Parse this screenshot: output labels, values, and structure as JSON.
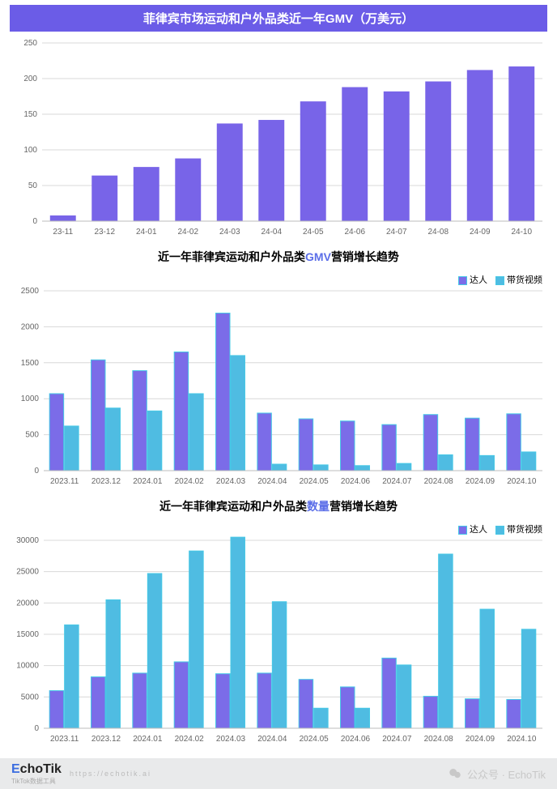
{
  "chart1": {
    "type": "bar",
    "title": "菲律宾市场运动和户外品类近一年GMV（万美元）",
    "x_labels": [
      "23-11",
      "23-12",
      "24-01",
      "24-02",
      "24-03",
      "24-04",
      "24-05",
      "24-06",
      "24-07",
      "24-08",
      "24-09",
      "24-10"
    ],
    "values": [
      8,
      64,
      76,
      88,
      137,
      142,
      168,
      188,
      182,
      196,
      212,
      217
    ],
    "ymax": 250,
    "ytick_step": 50,
    "bar_color": "#7864e8",
    "title_bg": "#6b5ce7",
    "grid_color": "#d8d8d8",
    "label_fontsize": 10
  },
  "chart2": {
    "type": "grouped-bar",
    "title_prefix": "近一年菲律宾运动和户外品类",
    "title_accent": "GMV",
    "title_suffix": "营销增长趋势",
    "x_labels": [
      "2023.11",
      "2023.12",
      "2024.01",
      "2024.02",
      "2024.03",
      "2024.04",
      "2024.05",
      "2024.06",
      "2024.07",
      "2024.08",
      "2024.09",
      "2024.10"
    ],
    "series": [
      {
        "name": "达人",
        "color": "#7b6ce8",
        "stroke": "#46c8e6",
        "values": [
          1070,
          1540,
          1390,
          1650,
          2190,
          800,
          720,
          690,
          640,
          780,
          730,
          790
        ]
      },
      {
        "name": "带货视频",
        "color": "#4fbce2",
        "stroke": "#46c8e6",
        "values": [
          620,
          870,
          830,
          1070,
          1600,
          90,
          80,
          70,
          100,
          220,
          210,
          260
        ]
      }
    ],
    "ymax": 2500,
    "ytick_step": 500,
    "legend": {
      "daren": "达人",
      "video": "带货视频"
    }
  },
  "chart3": {
    "type": "grouped-bar",
    "title_prefix": "近一年菲律宾运动和户外品类",
    "title_accent": "数量",
    "title_suffix": "营销增长趋势",
    "x_labels": [
      "2023.11",
      "2023.12",
      "2024.01",
      "2024.02",
      "2024.03",
      "2024.04",
      "2024.05",
      "2024.06",
      "2024.07",
      "2024.08",
      "2024.09",
      "2024.10"
    ],
    "series": [
      {
        "name": "达人",
        "color": "#7b6ce8",
        "stroke": "#46c8e6",
        "values": [
          6000,
          8200,
          8800,
          10600,
          8700,
          8800,
          7800,
          6600,
          11200,
          5100,
          4700,
          4600
        ]
      },
      {
        "name": "带货视频",
        "color": "#4fbce2",
        "stroke": "#46c8e6",
        "values": [
          16500,
          20500,
          24700,
          28300,
          30500,
          20200,
          3200,
          3200,
          10100,
          27800,
          19000,
          15800
        ]
      }
    ],
    "ymax": 30000,
    "ytick_step": 5000,
    "legend": {
      "daren": "达人",
      "video": "带货视频"
    }
  },
  "footer": {
    "brand_e": "E",
    "brand_rest": "choTik",
    "brand_sub": "TikTok数据工具",
    "url": "https://echotik.ai",
    "wx": "公众号 · EchoTik"
  }
}
